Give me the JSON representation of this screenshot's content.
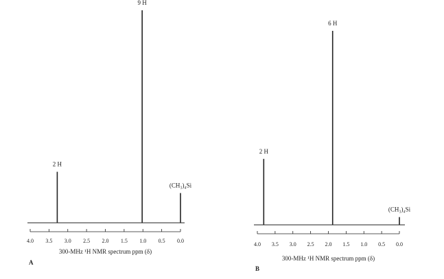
{
  "chart_data": [
    {
      "type": "spectrum",
      "panel": "A",
      "xlabel": "300-MHz ¹H NMR spectrum ppm (δ)",
      "x": [
        3.28,
        1.02,
        0.0
      ],
      "values": [
        24,
        100,
        14
      ],
      "annotations": [
        "2 H",
        "9 H",
        "(CH₃)₄Si"
      ],
      "color": "#222222",
      "xlim": [
        4,
        0
      ],
      "ylim": [
        0,
        100
      ],
      "xticks": [
        {
          "value": 4,
          "label": "4.0"
        },
        {
          "value": 3.5,
          "label": "3.5"
        },
        {
          "value": 3,
          "label": "3.0"
        },
        {
          "value": 2.5,
          "label": "2.5"
        },
        {
          "value": 2,
          "label": "2.0"
        },
        {
          "value": 1.5,
          "label": "1.5"
        },
        {
          "value": 1,
          "label": "1.0"
        },
        {
          "value": 0.5,
          "label": "0.5"
        },
        {
          "value": 0,
          "label": "0.0"
        }
      ]
    },
    {
      "type": "spectrum",
      "panel": "B",
      "xlabel": "300-MHz ¹H NMR spectrum ppm (δ)",
      "x": [
        3.82,
        1.88,
        0.0
      ],
      "values": [
        34,
        100,
        4
      ],
      "annotations": [
        "2 H",
        "6 H",
        "(CH₃)₄Si"
      ],
      "color": "#222222",
      "xlim": [
        4,
        0
      ],
      "ylim": [
        0,
        100
      ],
      "xticks": [
        {
          "value": 4,
          "label": "4.0"
        },
        {
          "value": 3.5,
          "label": "3.5"
        },
        {
          "value": 3,
          "label": "3.0"
        },
        {
          "value": 2.5,
          "label": "2.5"
        },
        {
          "value": 2,
          "label": "2.0"
        },
        {
          "value": 1.5,
          "label": "1.5"
        },
        {
          "value": 1,
          "label": "1.0"
        },
        {
          "value": 0.5,
          "label": "0.5"
        },
        {
          "value": 0,
          "label": "0.0"
        }
      ]
    }
  ]
}
